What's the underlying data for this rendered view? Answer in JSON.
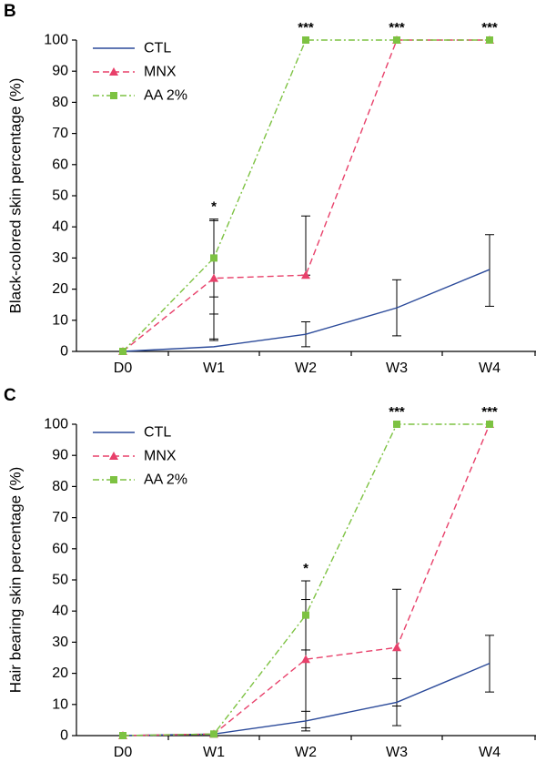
{
  "chart_data": [
    {
      "panel_label": "B",
      "type": "line",
      "ylabel": "Black-colored skin percentage (%)",
      "xlabel": "",
      "categories": [
        "D0",
        "W1",
        "W2",
        "W3",
        "W4"
      ],
      "ylim": [
        0,
        100
      ],
      "yticks": [
        "0",
        "10",
        "20",
        "30",
        "40",
        "50",
        "60",
        "70",
        "80",
        "90",
        "100"
      ],
      "legend_position": "top-left",
      "series": [
        {
          "name": "CTL",
          "color": "#2b4a9a",
          "dash": "solid",
          "marker": "none",
          "values": [
            0,
            1.5,
            5.5,
            14,
            26.3
          ],
          "err_low": [
            0,
            3.5,
            1.5,
            5,
            14.5
          ],
          "err_high": [
            0,
            12,
            9.5,
            23,
            37.5
          ]
        },
        {
          "name": "MNX",
          "color": "#e8406a",
          "dash": "dashed",
          "marker": "triangle",
          "values": [
            0,
            23.5,
            24.5,
            100,
            100
          ],
          "err_low": [
            0,
            4,
            24.5,
            100,
            100
          ],
          "err_high": [
            0,
            42.5,
            43.5,
            100,
            100
          ]
        },
        {
          "name": "AA 2%",
          "color": "#7dc242",
          "dash": "dashdot",
          "marker": "square",
          "values": [
            0,
            30,
            100,
            100,
            100
          ],
          "err_low": [
            0,
            17.5,
            100,
            100,
            100
          ],
          "err_high": [
            0,
            42,
            100,
            100,
            100
          ]
        }
      ],
      "significance": [
        {
          "category": "W1",
          "label": "*"
        },
        {
          "category": "W2",
          "label": "***"
        },
        {
          "category": "W3",
          "label": "***"
        },
        {
          "category": "W4",
          "label": "***"
        }
      ]
    },
    {
      "panel_label": "C",
      "type": "line",
      "ylabel": "Hair bearing skin percentage (%)",
      "xlabel": "",
      "categories": [
        "D0",
        "W1",
        "W2",
        "W3",
        "W4"
      ],
      "ylim": [
        0,
        100
      ],
      "yticks": [
        "0",
        "10",
        "20",
        "30",
        "40",
        "50",
        "60",
        "70",
        "80",
        "90",
        "100"
      ],
      "legend_position": "top-left",
      "series": [
        {
          "name": "CTL",
          "color": "#2b4a9a",
          "dash": "solid",
          "marker": "none",
          "values": [
            0,
            0.5,
            4.7,
            10.7,
            23.2
          ],
          "err_low": [
            0,
            0.5,
            1.5,
            3.2,
            14
          ],
          "err_high": [
            0,
            0.5,
            7.8,
            18.3,
            32.2
          ]
        },
        {
          "name": "MNX",
          "color": "#e8406a",
          "dash": "dashed",
          "marker": "triangle",
          "values": [
            0,
            0.5,
            24.5,
            28.3,
            100
          ],
          "err_low": [
            0,
            0.5,
            2.5,
            9.5,
            100
          ],
          "err_high": [
            0,
            0.5,
            43.7,
            47,
            100
          ]
        },
        {
          "name": "AA 2%",
          "color": "#7dc242",
          "dash": "dashdot",
          "marker": "square",
          "values": [
            0,
            0.5,
            38.7,
            100,
            100
          ],
          "err_low": [
            0,
            0.5,
            27.5,
            100,
            100
          ],
          "err_high": [
            0,
            0.5,
            49.7,
            100,
            100
          ]
        }
      ],
      "significance": [
        {
          "category": "W2",
          "label": "*"
        },
        {
          "category": "W3",
          "label": "***"
        },
        {
          "category": "W4",
          "label": "***"
        }
      ]
    }
  ]
}
